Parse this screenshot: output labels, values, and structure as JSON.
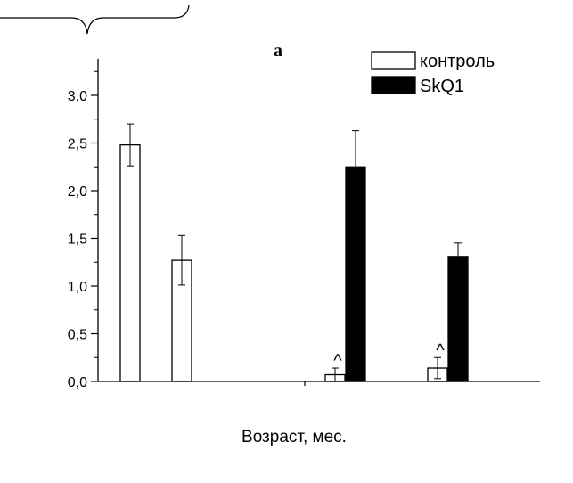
{
  "chart_data": {
    "type": "bar",
    "title": "а",
    "xlabel": "Возраст, мес.",
    "ylabel": "",
    "ylim": [
      0,
      3.4
    ],
    "y_ticks": [
      "0,0",
      "0,5",
      "1,0",
      "1,5",
      "2,0",
      "2,5",
      "3,0"
    ],
    "y_tick_values": [
      0,
      0.5,
      1.0,
      1.5,
      2.0,
      2.5,
      3.0
    ],
    "legend_position": "top-right",
    "series": [
      {
        "name": "контроль",
        "color": "#ffffff",
        "values": [
          2.48,
          1.27,
          0.07,
          0.14
        ],
        "errors": [
          0.22,
          0.26,
          0.07,
          0.11
        ],
        "annotations": [
          "",
          "",
          "^",
          "^"
        ]
      },
      {
        "name": "SkQ1",
        "color": "#000000",
        "values": [
          null,
          null,
          2.25,
          1.31
        ],
        "errors": [
          null,
          null,
          0.38,
          0.14
        ],
        "annotations": [
          "",
          "",
          "",
          ""
        ]
      }
    ]
  }
}
